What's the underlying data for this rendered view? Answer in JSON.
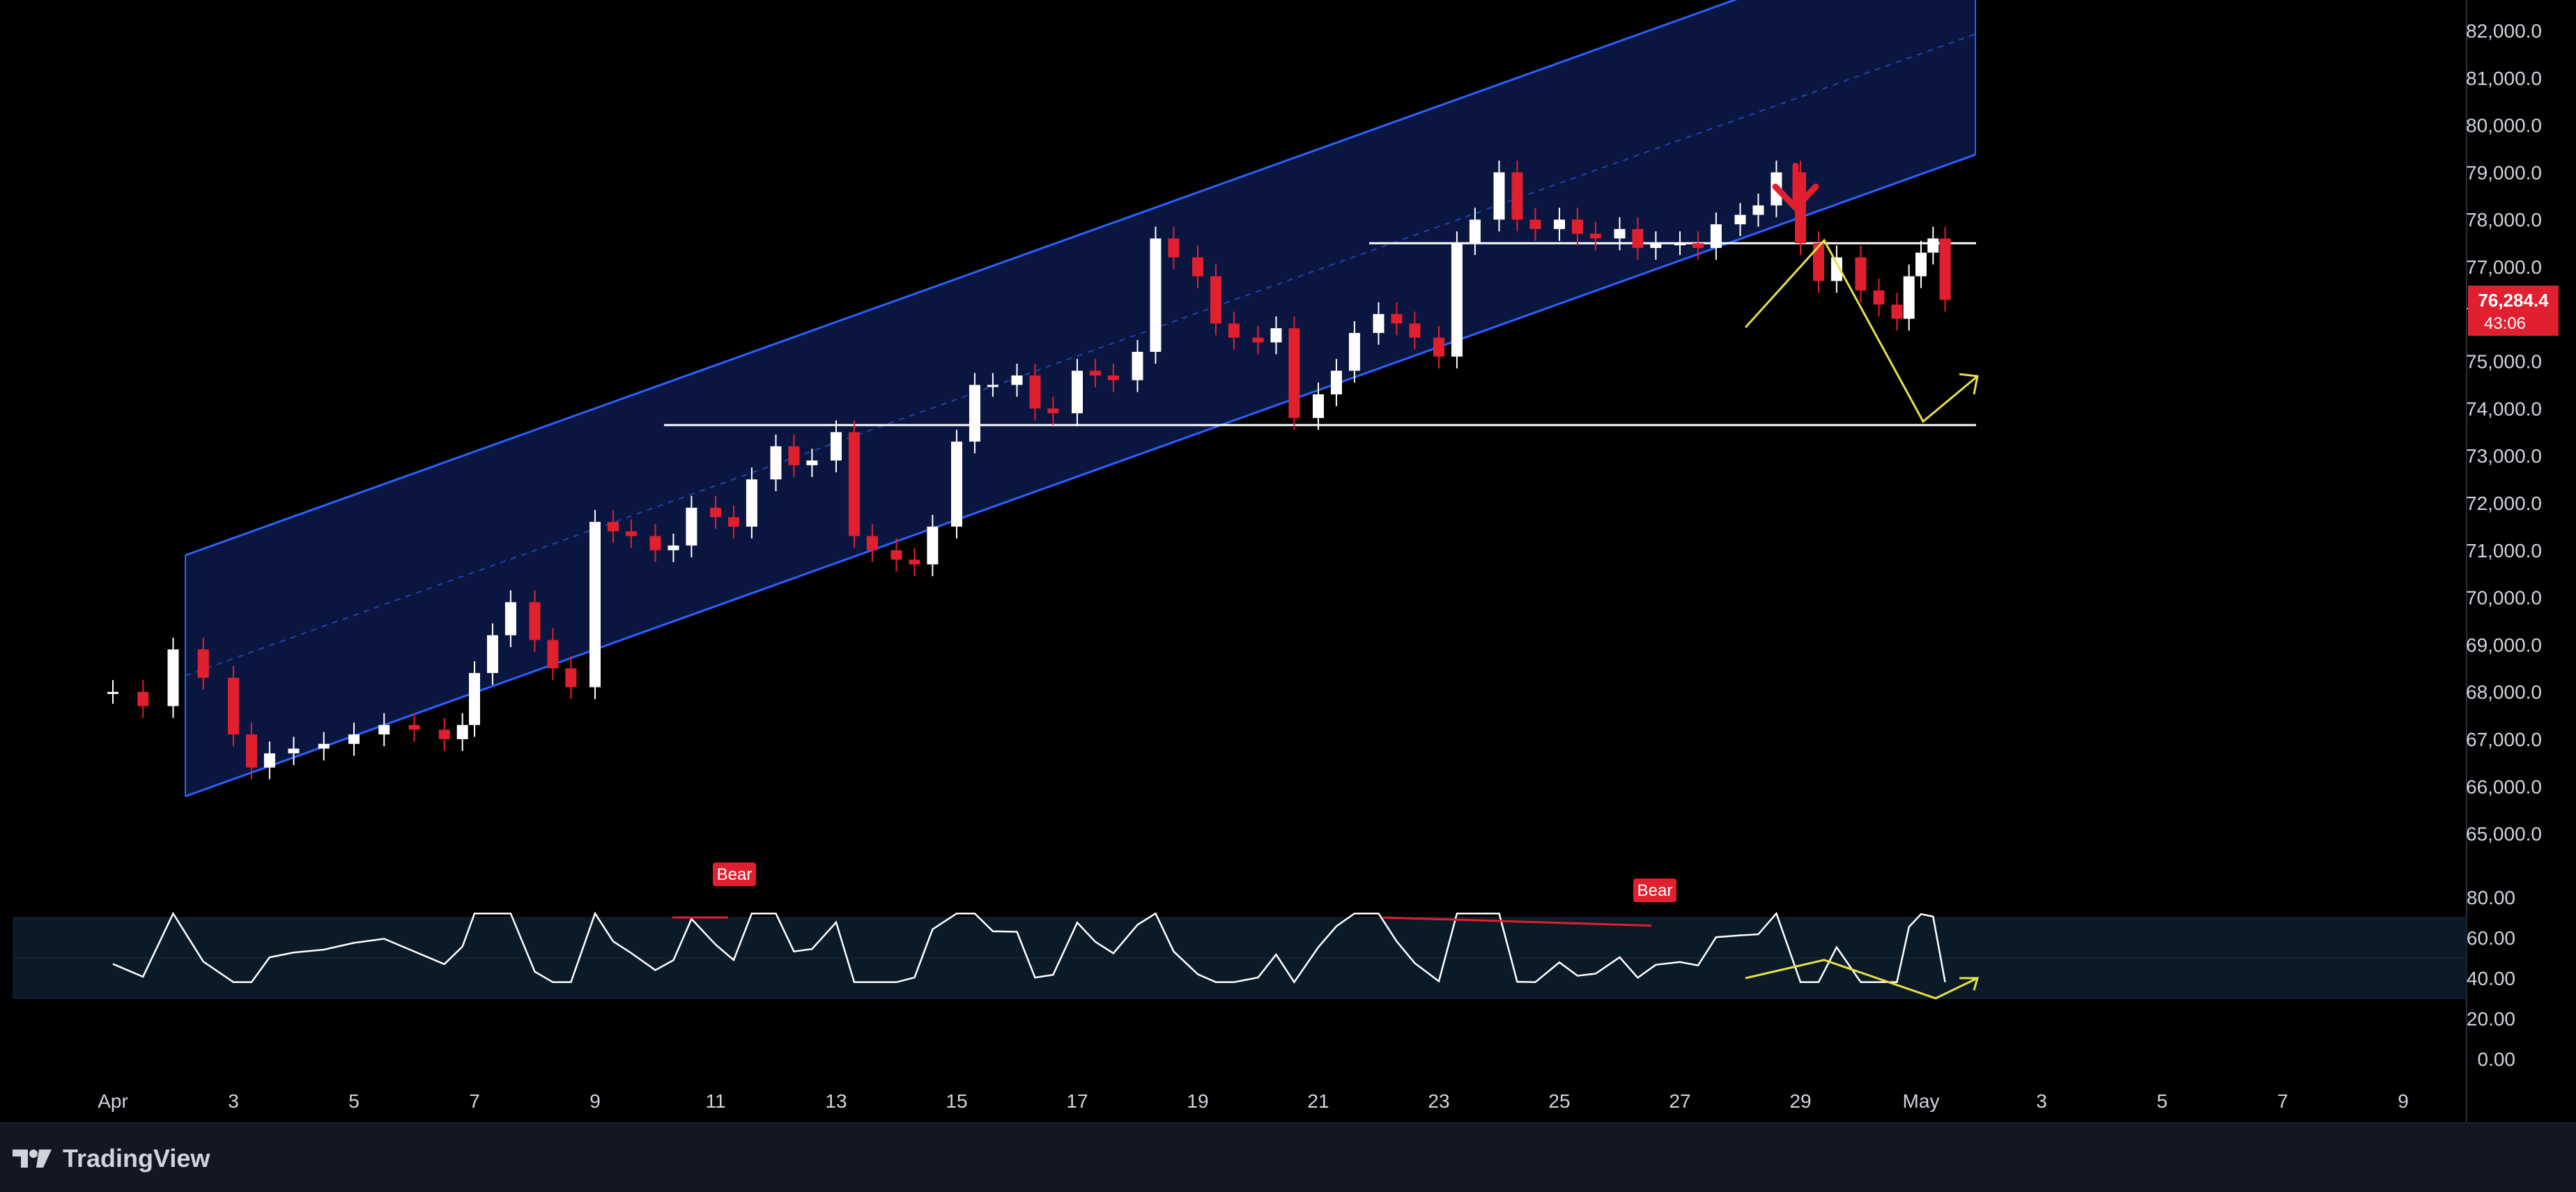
{
  "chart_data": [
    {
      "type": "candlestick",
      "title": "",
      "ylim": [
        64500,
        82500
      ],
      "yticks": [
        "82,000.0",
        "81,000.0",
        "80,000.0",
        "79,000.0",
        "78,000.0",
        "77,000.0",
        "76,000.0",
        "75,000.0",
        "74,000.0",
        "73,000.0",
        "72,000.0",
        "71,000.0",
        "70,000.0",
        "69,000.0",
        "68,000.0",
        "67,000.0",
        "66,000.0",
        "65,000.0"
      ],
      "ytick_values": [
        82000,
        81000,
        80000,
        79000,
        78000,
        77000,
        76000,
        75000,
        74000,
        73000,
        72000,
        71000,
        70000,
        69000,
        68000,
        67000,
        66000,
        65000
      ],
      "xlim": [
        -0.9,
        9.85
      ],
      "xticks": [
        {
          "label": "Apr",
          "x": 0
        },
        {
          "label": "3",
          "x": 2
        },
        {
          "label": "5",
          "x": 4
        },
        {
          "label": "7",
          "x": 6
        },
        {
          "label": "9",
          "x": 8
        },
        {
          "label": "11",
          "x": 10
        },
        {
          "label": "13",
          "x": 12
        },
        {
          "label": "15",
          "x": 14
        },
        {
          "label": "17",
          "x": 16
        },
        {
          "label": "19",
          "x": 18
        },
        {
          "label": "21",
          "x": 20
        },
        {
          "label": "23",
          "x": 22
        },
        {
          "label": "25",
          "x": 24
        },
        {
          "label": "27",
          "x": 26
        },
        {
          "label": "29",
          "x": 28
        },
        {
          "label": "May",
          "x": 30
        },
        {
          "label": "3",
          "x": 32
        },
        {
          "label": "5",
          "x": 34
        },
        {
          "label": "7",
          "x": 36
        },
        {
          "label": "9",
          "x": 38
        }
      ],
      "x_axis_note": "x in days since Apr 1 scaled later by script",
      "current_price": {
        "value": 76284.4,
        "label": "76,284.4",
        "countdown": "43:06"
      },
      "colors": {
        "up": "#ffffff",
        "down": "#e0202f",
        "channel": "#2962ff",
        "channel_fill": "#0b1640",
        "level": "#ffffff",
        "projection": "#e8e047",
        "arrow": "#e0202f"
      },
      "candles_anchor": [
        [
          0.0,
          68000
        ],
        [
          0.5,
          67700
        ],
        [
          1.0,
          68900
        ],
        [
          1.5,
          68300
        ],
        [
          2.0,
          67100
        ],
        [
          2.3,
          66400
        ],
        [
          2.6,
          66700
        ],
        [
          3.0,
          66800
        ],
        [
          3.5,
          66900
        ],
        [
          4.0,
          67100
        ],
        [
          4.5,
          67300
        ],
        [
          5.0,
          67200
        ],
        [
          5.5,
          67000
        ],
        [
          5.8,
          67300
        ],
        [
          6.0,
          68400
        ],
        [
          6.3,
          69200
        ],
        [
          6.6,
          69900
        ],
        [
          7.0,
          69100
        ],
        [
          7.3,
          68500
        ],
        [
          7.6,
          68100
        ],
        [
          8.0,
          71600
        ],
        [
          8.3,
          71400
        ],
        [
          8.6,
          71300
        ],
        [
          9.0,
          71000
        ],
        [
          9.3,
          71100
        ],
        [
          9.6,
          71900
        ],
        [
          10.0,
          71700
        ],
        [
          10.3,
          71500
        ],
        [
          10.6,
          72500
        ],
        [
          11.0,
          73200
        ],
        [
          11.3,
          72800
        ],
        [
          11.6,
          72900
        ],
        [
          12.0,
          73500
        ],
        [
          12.3,
          71300
        ],
        [
          12.6,
          71000
        ],
        [
          13.0,
          70800
        ],
        [
          13.3,
          70700
        ],
        [
          13.6,
          71500
        ],
        [
          14.0,
          73300
        ],
        [
          14.3,
          74500
        ],
        [
          14.6,
          74500
        ],
        [
          15.0,
          74700
        ],
        [
          15.3,
          74000
        ],
        [
          15.6,
          73900
        ],
        [
          16.0,
          74800
        ],
        [
          16.3,
          74700
        ],
        [
          16.6,
          74600
        ],
        [
          17.0,
          75200
        ],
        [
          17.3,
          77600
        ],
        [
          17.6,
          77200
        ],
        [
          18.0,
          76800
        ],
        [
          18.3,
          75800
        ],
        [
          18.6,
          75500
        ],
        [
          19.0,
          75400
        ],
        [
          19.3,
          75700
        ],
        [
          19.6,
          73800
        ],
        [
          20.0,
          74300
        ],
        [
          20.3,
          74800
        ],
        [
          20.6,
          75600
        ],
        [
          21.0,
          76000
        ],
        [
          21.3,
          75800
        ],
        [
          21.6,
          75500
        ],
        [
          22.0,
          75100
        ],
        [
          22.3,
          77500
        ],
        [
          22.6,
          78000
        ],
        [
          23.0,
          79000
        ],
        [
          23.3,
          78000
        ],
        [
          23.6,
          77800
        ],
        [
          24.0,
          78000
        ],
        [
          24.3,
          77700
        ],
        [
          24.6,
          77600
        ],
        [
          25.0,
          77800
        ],
        [
          25.3,
          77400
        ],
        [
          25.6,
          77500
        ],
        [
          26.0,
          77500
        ],
        [
          26.3,
          77400
        ],
        [
          26.6,
          77900
        ],
        [
          27.0,
          78100
        ],
        [
          27.3,
          78300
        ],
        [
          27.6,
          79000
        ],
        [
          28.0,
          77500
        ],
        [
          28.3,
          76700
        ],
        [
          28.6,
          77200
        ],
        [
          29.0,
          76500
        ],
        [
          29.3,
          76200
        ],
        [
          29.6,
          75900
        ],
        [
          29.8,
          76800
        ],
        [
          30.0,
          77300
        ],
        [
          30.2,
          77600
        ],
        [
          30.4,
          76300
        ]
      ]
    },
    {
      "type": "line",
      "title": "",
      "ylim": [
        0,
        85
      ],
      "yticks": [
        "80.00",
        "60.00",
        "40.00",
        "20.00",
        "0.00"
      ],
      "ytick_values": [
        80,
        60,
        40,
        20,
        0
      ],
      "band": [
        30,
        70
      ],
      "labels": [
        "Bear",
        "Bear"
      ],
      "colors": {
        "line": "#ffffff",
        "band_fill": "#0a1a26",
        "divergence": "#e0202f",
        "projection": "#e8e047"
      }
    }
  ],
  "labels": {
    "bear_1": "Bear",
    "bear_2": "Bear"
  },
  "footer": {
    "brand": "TradingView"
  }
}
